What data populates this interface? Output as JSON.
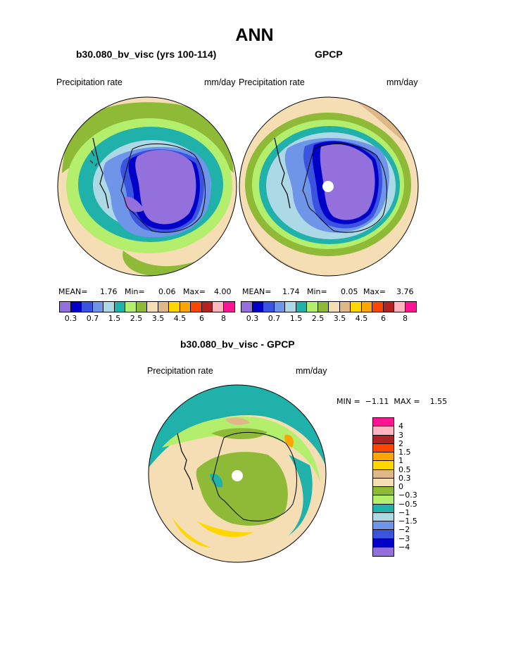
{
  "title": "ANN",
  "panels": [
    {
      "title": "b30.080_bv_visc (yrs 100-114)",
      "label_left": "Precipitation rate",
      "label_right": "mm/day",
      "stats": {
        "mean_label": "MEAN=",
        "mean": "1.76",
        "min_label": "Min=",
        "min": "0.06",
        "max_label": "Max=",
        "max": "4.00"
      }
    },
    {
      "title": "GPCP",
      "label_left": "Precipitation rate",
      "label_right": "mm/day",
      "stats": {
        "mean_label": "MEAN=",
        "mean": "1.74",
        "min_label": "Min=",
        "min": "0.05",
        "max_label": "Max=",
        "max": "3.76"
      }
    },
    {
      "title": "b30.080_bv_visc - GPCP",
      "label_left": "Precipitation rate",
      "label_right": "mm/day",
      "minmax": "MIN =  −1.11  MAX =    1.55"
    }
  ],
  "colorbar_main": {
    "colors": [
      "#9370db",
      "#0000c8",
      "#3a54e0",
      "#6f95e8",
      "#add8e6",
      "#20b2aa",
      "#b3ee6d",
      "#8fba38",
      "#f5deb3",
      "#deb887",
      "#ffd700",
      "#ffa500",
      "#ff4500",
      "#b22222",
      "#ffb6c1",
      "#ff1493"
    ],
    "labels": [
      "0.3",
      "0.7",
      "1.5",
      "2.5",
      "3.5",
      "4.5",
      "6",
      "8"
    ]
  },
  "colorbar_diff": {
    "colors": [
      "#ff1493",
      "#ffb6c1",
      "#b22222",
      "#ff4500",
      "#ffa500",
      "#ffd700",
      "#deb887",
      "#f5deb3",
      "#8fba38",
      "#b3ee6d",
      "#20b2aa",
      "#add8e6",
      "#6f95e8",
      "#3a54e0",
      "#0000c8",
      "#9370db"
    ],
    "labels": [
      "4",
      "3",
      "2",
      "1.5",
      "1",
      "0.5",
      "0.3",
      "0",
      "−0.3",
      "−0.5",
      "−1",
      "−1.5",
      "−2",
      "−3",
      "−4"
    ]
  }
}
